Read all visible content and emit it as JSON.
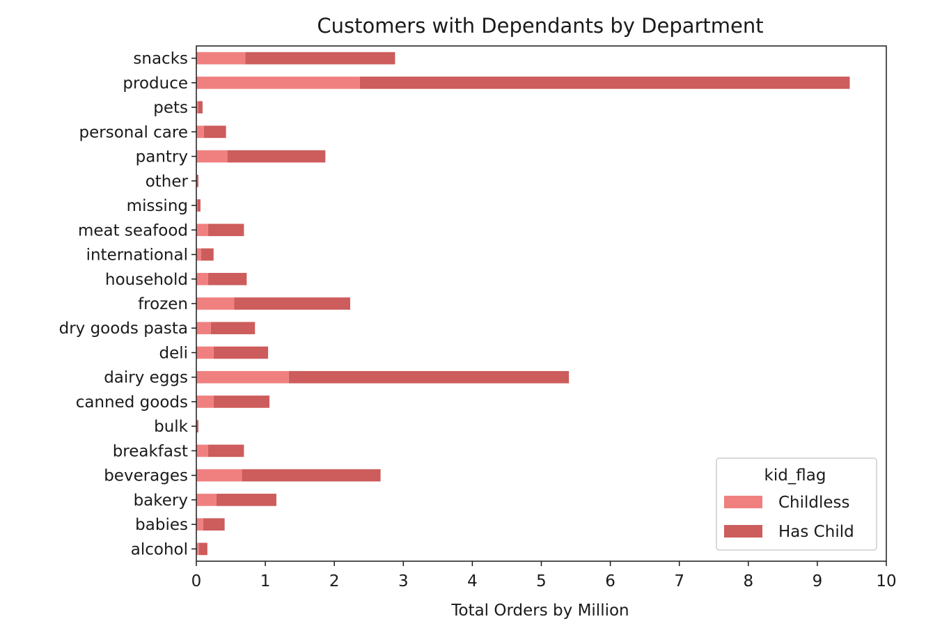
{
  "chart_data": {
    "type": "bar",
    "orientation": "horizontal",
    "stacked": true,
    "title": "Customers with Dependants by Department",
    "xlabel": "Total Orders by Million",
    "ylabel": "",
    "xlim": [
      0,
      10
    ],
    "xticks": [
      "0",
      "1",
      "2",
      "3",
      "4",
      "5",
      "6",
      "7",
      "8",
      "9",
      "10"
    ],
    "grid": false,
    "legend": {
      "title": "kid_flag",
      "position": "lower-right"
    },
    "categories": [
      "alcohol",
      "babies",
      "bakery",
      "beverages",
      "breakfast",
      "bulk",
      "canned goods",
      "dairy eggs",
      "deli",
      "dry goods pasta",
      "frozen",
      "household",
      "international",
      "meat seafood",
      "missing",
      "other",
      "pantry",
      "personal care",
      "pets",
      "produce",
      "snacks"
    ],
    "series": [
      {
        "name": "Childless",
        "color": "#f08080",
        "values": [
          0.04,
          0.1,
          0.29,
          0.66,
          0.17,
          0.01,
          0.25,
          1.34,
          0.25,
          0.21,
          0.55,
          0.17,
          0.07,
          0.17,
          0.02,
          0.01,
          0.45,
          0.11,
          0.03,
          2.37,
          0.71
        ]
      },
      {
        "name": "Has Child",
        "color": "#cd5c5c",
        "values": [
          0.12,
          0.31,
          0.87,
          2.01,
          0.52,
          0.02,
          0.81,
          4.06,
          0.79,
          0.64,
          1.68,
          0.56,
          0.18,
          0.52,
          0.04,
          0.02,
          1.42,
          0.32,
          0.06,
          7.1,
          2.17
        ]
      }
    ]
  }
}
